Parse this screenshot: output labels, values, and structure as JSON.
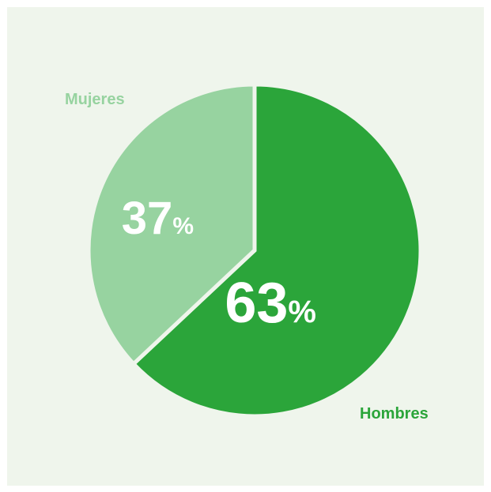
{
  "chart_data": {
    "type": "pie",
    "title": "",
    "slices": [
      {
        "label": "Hombres",
        "value": 63,
        "value_label": "63",
        "unit": "%",
        "color": "#2ba53a"
      },
      {
        "label": "Mujeres",
        "value": 37,
        "value_label": "37",
        "unit": "%",
        "color": "#97d3a0"
      }
    ],
    "background_color": "#eff5ec",
    "separator_color": "#eff5ec"
  }
}
